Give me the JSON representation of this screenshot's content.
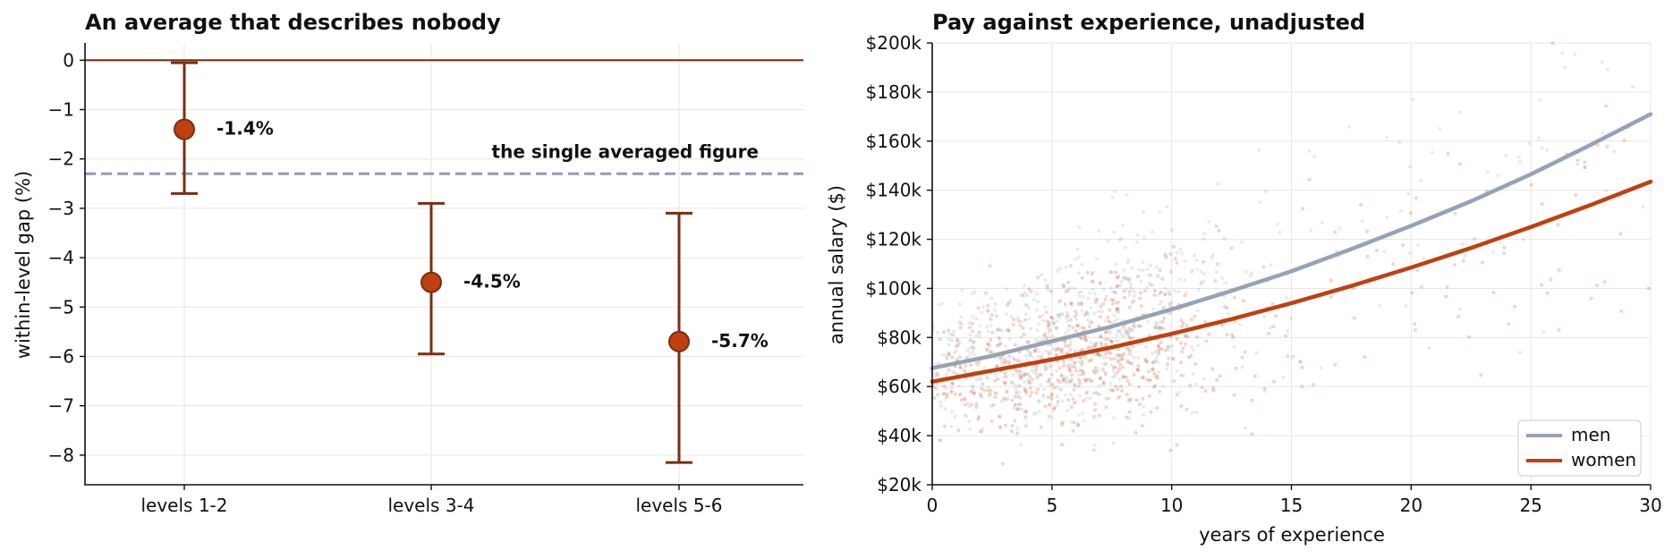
{
  "chart_data": [
    {
      "type": "scatter",
      "title": "An average that describes nobody",
      "ylabel": "within-level gap (%)",
      "xlabel": "",
      "categories": [
        "levels 1-2",
        "levels 3-4",
        "levels 5-6"
      ],
      "values": [
        -1.4,
        -4.5,
        -5.7
      ],
      "error_low": [
        -2.7,
        -5.95,
        -8.15
      ],
      "error_high": [
        -0.05,
        -2.9,
        -3.1
      ],
      "value_labels": [
        "-1.4%",
        "-4.5%",
        "-5.7%"
      ],
      "yticks": [
        "0",
        "−1",
        "−2",
        "−3",
        "−4",
        "−5",
        "−6",
        "−7",
        "−8"
      ],
      "ylim": [
        -8.6,
        0.35
      ],
      "reference_lines": [
        {
          "y": 0,
          "style": "solid",
          "color": "#7a2e12"
        },
        {
          "y": -2.3,
          "style": "dashed",
          "color": "#8f9db3",
          "label": "the single averaged figure"
        }
      ],
      "colors": {
        "point": "#c0400f",
        "error": "#7a2e12",
        "label": "#7a2e12",
        "reference": "#8f9db3"
      },
      "grid": true
    },
    {
      "type": "line",
      "title": "Pay against experience, unadjusted",
      "xlabel": "years of experience",
      "ylabel": "annual salary ($)",
      "xlim": [
        0,
        30
      ],
      "ylim": [
        20000,
        200000
      ],
      "xticks": [
        "0",
        "5",
        "10",
        "15",
        "20",
        "25",
        "30"
      ],
      "yticks": [
        "$20k",
        "$40k",
        "$60k",
        "$80k",
        "$100k",
        "$120k",
        "$140k",
        "$160k",
        "$180k",
        "$200k"
      ],
      "x": [
        0,
        2.5,
        5,
        7.5,
        10,
        12.5,
        15,
        17.5,
        20,
        22.5,
        25,
        27.5,
        30
      ],
      "series": [
        {
          "name": "men",
          "color": "#96a3b7",
          "values": [
            67500,
            72500,
            78500,
            84500,
            91500,
            99000,
            107000,
            116000,
            125500,
            135500,
            146500,
            158500,
            171000
          ]
        },
        {
          "name": "women",
          "color": "#c0400f",
          "values": [
            62000,
            66500,
            71000,
            76000,
            81500,
            87500,
            94000,
            101000,
            108500,
            116500,
            125000,
            134000,
            143500
          ]
        }
      ],
      "scatter_background": "dense faint points for men and women, concentrated at 2–12 years and $40k–$120k",
      "legend": "bottom-right",
      "grid": true
    }
  ]
}
